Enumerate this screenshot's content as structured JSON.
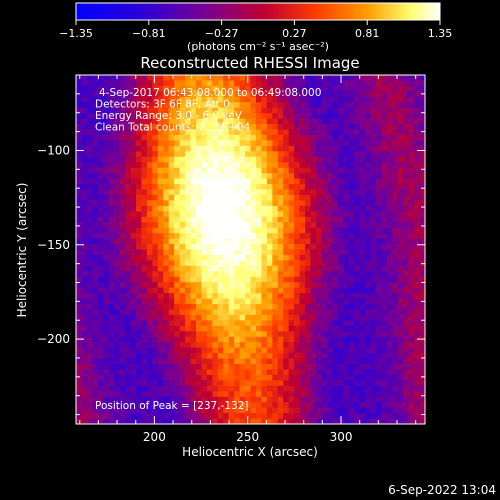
{
  "chart_data": {
    "type": "heatmap",
    "title": "Reconstructed RHESSI Image",
    "xlabel": "Heliocentric X (arcsec)",
    "ylabel": "Heliocentric Y (arcsec)",
    "xlim": [
      158,
      345
    ],
    "ylim": [
      -245,
      -60
    ],
    "xticks": [
      200,
      250,
      300
    ],
    "yticks": [
      -100,
      -150,
      -200
    ],
    "colorbar": {
      "range": [
        -1.35,
        1.35
      ],
      "ticks": [
        "-1.35",
        "-0.81",
        "-0.27",
        "0.27",
        "0.81",
        "1.35"
      ],
      "unit_label": "(photons cm⁻² s⁻¹ asec⁻²)"
    },
    "annotations": [
      "4-Sep-2017 06:43:08.000 to 06:49:08.000",
      "Detectors: 3F 6F 8F, Att 0",
      "Energy Range: 3.0 - 6.0 keV",
      "Clean     Total counts: 7.15E+04"
    ],
    "peak_label": "Position of Peak = [237,-132]",
    "peak": [
      237,
      -132
    ],
    "footer_date": "6-Sep-2022 13:04"
  },
  "colors": {
    "background": "#000000",
    "text": "#ffffff",
    "colormap": [
      "#0000ff",
      "#3a00c8",
      "#7a0090",
      "#c00030",
      "#ff3c00",
      "#ff9c00",
      "#ffff70",
      "#ffffff"
    ]
  }
}
